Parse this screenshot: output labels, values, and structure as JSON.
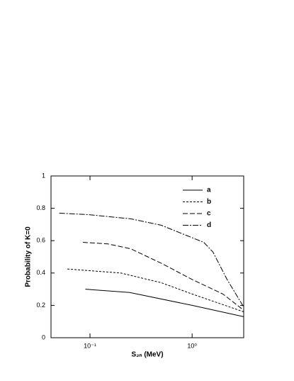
{
  "chart_data": {
    "type": "line",
    "xlabel": "S₂ₙ (MeV)",
    "ylabel": "Probability of K=0",
    "xscale": "log",
    "xlim": [
      0.0415,
      3.2
    ],
    "ylim": [
      0,
      1
    ],
    "xticks": [
      {
        "value": 0.1,
        "label": "10⁻¹"
      },
      {
        "value": 1,
        "label": "10⁰"
      }
    ],
    "yticks": [
      0,
      0.2,
      0.4,
      0.6,
      0.8,
      1
    ],
    "legend": "upper right",
    "series": [
      {
        "name": "a",
        "color": "#000000",
        "dash": "none",
        "x": [
          0.09,
          0.245,
          1.0,
          3.2
        ],
        "values": [
          0.3,
          0.28,
          0.2,
          0.13
        ]
      },
      {
        "name": "b",
        "color": "#000000",
        "dash": "3,2",
        "x": [
          0.06,
          0.2,
          0.5,
          1.0,
          3.2
        ],
        "values": [
          0.425,
          0.4,
          0.34,
          0.27,
          0.16
        ]
      },
      {
        "name": "c",
        "color": "#000000",
        "dash": "7,3",
        "x": [
          0.085,
          0.15,
          0.25,
          0.5,
          1.0,
          2.0,
          3.2
        ],
        "values": [
          0.59,
          0.58,
          0.55,
          0.46,
          0.36,
          0.27,
          0.17
        ]
      },
      {
        "name": "d",
        "color": "#000000",
        "dash": "8,2,2,2",
        "x": [
          0.05,
          0.1,
          0.25,
          0.5,
          0.9,
          1.3,
          1.6,
          2.2,
          3.2
        ],
        "values": [
          0.77,
          0.76,
          0.735,
          0.695,
          0.63,
          0.59,
          0.53,
          0.36,
          0.19
        ]
      }
    ]
  }
}
